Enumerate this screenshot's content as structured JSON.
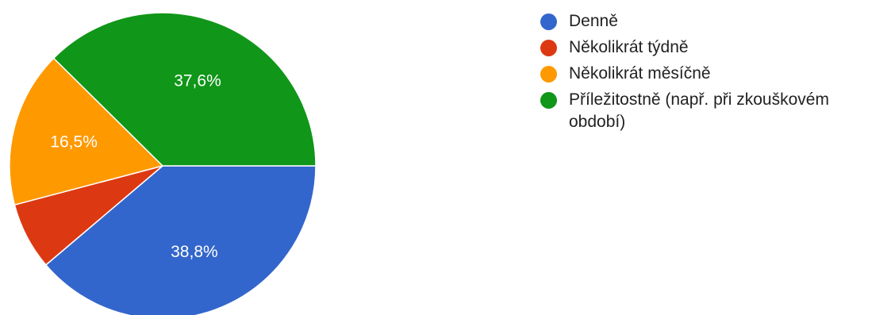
{
  "chart_data": {
    "type": "pie",
    "slices": [
      {
        "label": "Denně",
        "value": 38.8,
        "value_label": "38,8%",
        "color": "#3366cc"
      },
      {
        "label": "Několikrát týdně",
        "value": 7.1,
        "value_label": "",
        "color": "#dc3912"
      },
      {
        "label": "Několikrát měsíčně",
        "value": 16.5,
        "value_label": "16,5%",
        "color": "#ff9900"
      },
      {
        "label": "Příležitostně (např. při zkouškovém období)",
        "value": 37.6,
        "value_label": "37,6%",
        "color": "#109618"
      }
    ],
    "start": "3 o'clock, clockwise",
    "legend_position": "right"
  }
}
